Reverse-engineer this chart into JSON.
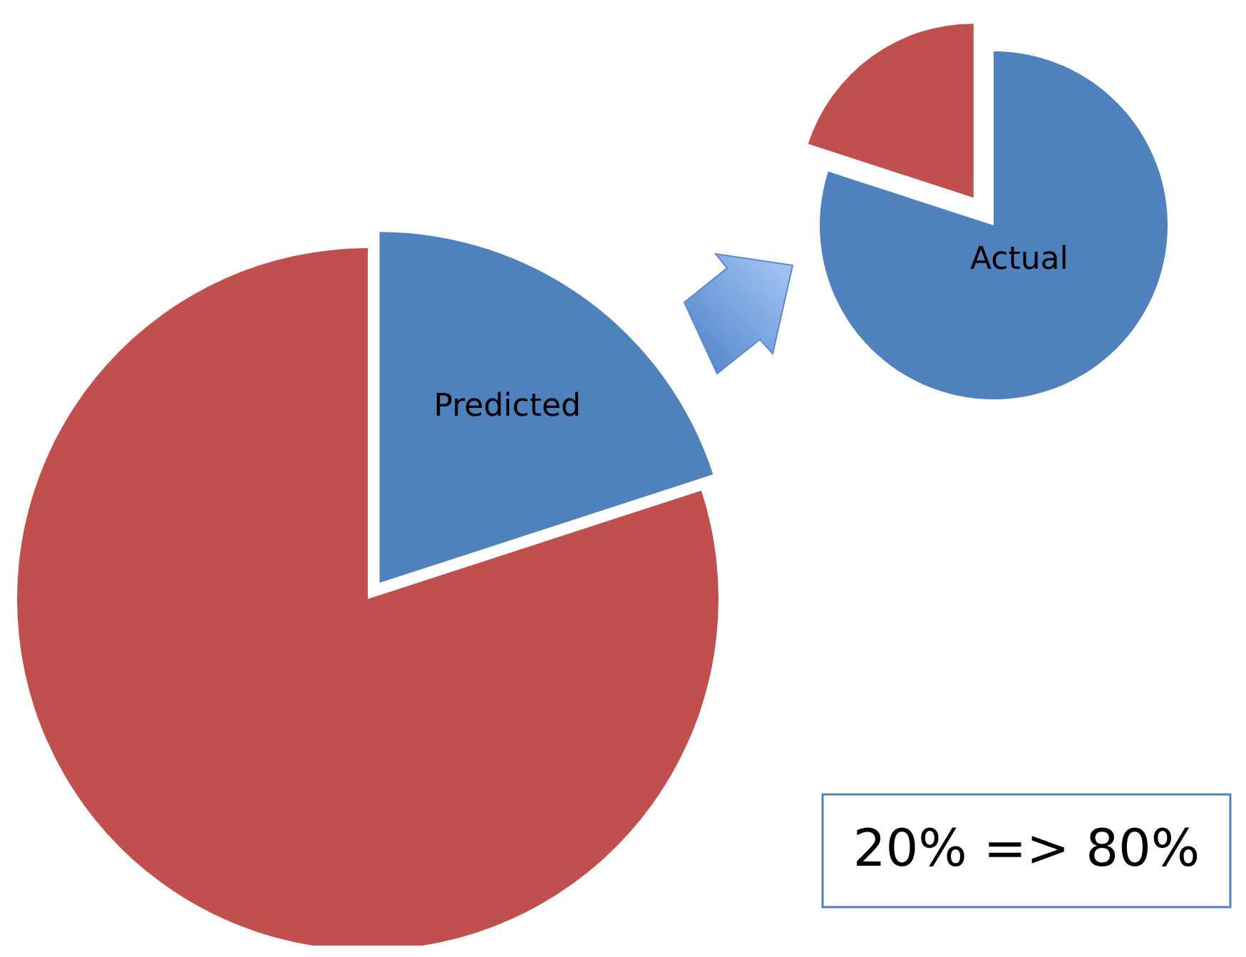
{
  "chart_data": [
    {
      "type": "pie",
      "categories": [
        "Predicted",
        null
      ],
      "values": [
        20,
        80
      ],
      "colors": [
        "#4f81bd",
        "#c0504d"
      ]
    },
    {
      "type": "pie",
      "categories": [
        "Actual",
        null
      ],
      "values": [
        80,
        20
      ],
      "colors": [
        "#4f81bd",
        "#c0504d"
      ],
      "annotations": [
        "20% => 80%"
      ]
    }
  ]
}
